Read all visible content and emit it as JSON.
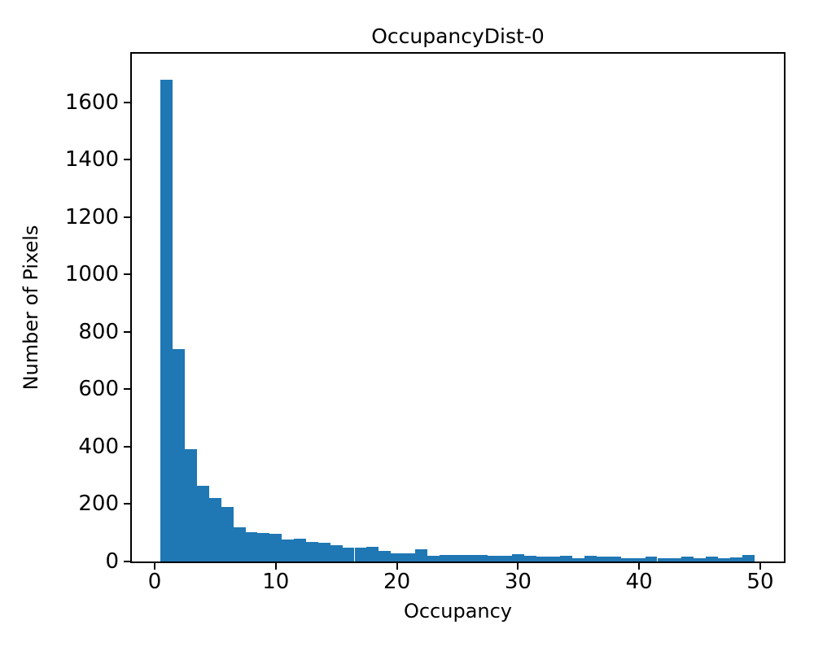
{
  "chart": {
    "title": "OccupancyDist-0",
    "xlabel": "Occupancy",
    "ylabel": "Number of Pixels"
  },
  "colors": {
    "bar": "#1f77b4",
    "spine": "#000000",
    "text": "#000000",
    "background": "#ffffff"
  },
  "chart_data": {
    "type": "bar",
    "subtype": "histogram",
    "title": "OccupancyDist-0",
    "xlabel": "Occupancy",
    "ylabel": "Number of Pixels",
    "bin_width": 1,
    "x": [
      1,
      2,
      3,
      4,
      5,
      6,
      7,
      8,
      9,
      10,
      11,
      12,
      13,
      14,
      15,
      16,
      17,
      18,
      19,
      20,
      21,
      22,
      23,
      24,
      25,
      26,
      27,
      28,
      29,
      30,
      31,
      32,
      33,
      34,
      35,
      36,
      37,
      38,
      39,
      40,
      41,
      42,
      43,
      44,
      45,
      46,
      47,
      48,
      49
    ],
    "values": [
      1680,
      740,
      392,
      264,
      222,
      191,
      119,
      103,
      100,
      96,
      76,
      79,
      68,
      64,
      58,
      47,
      48,
      52,
      36,
      28,
      28,
      43,
      19,
      24,
      24,
      23,
      23,
      19,
      19,
      26,
      19,
      16,
      16,
      19,
      10,
      19,
      16,
      16,
      10,
      12,
      16,
      12,
      12,
      18,
      12,
      17,
      12,
      15,
      22
    ],
    "xticks": [
      0,
      10,
      20,
      30,
      40,
      50
    ],
    "yticks": [
      0,
      200,
      400,
      600,
      800,
      1000,
      1200,
      1400,
      1600
    ],
    "xlim": [
      -1.88,
      51.95
    ],
    "ylim": [
      0,
      1770
    ],
    "grid": false,
    "legend": null,
    "bar_color": "#1f77b4"
  }
}
